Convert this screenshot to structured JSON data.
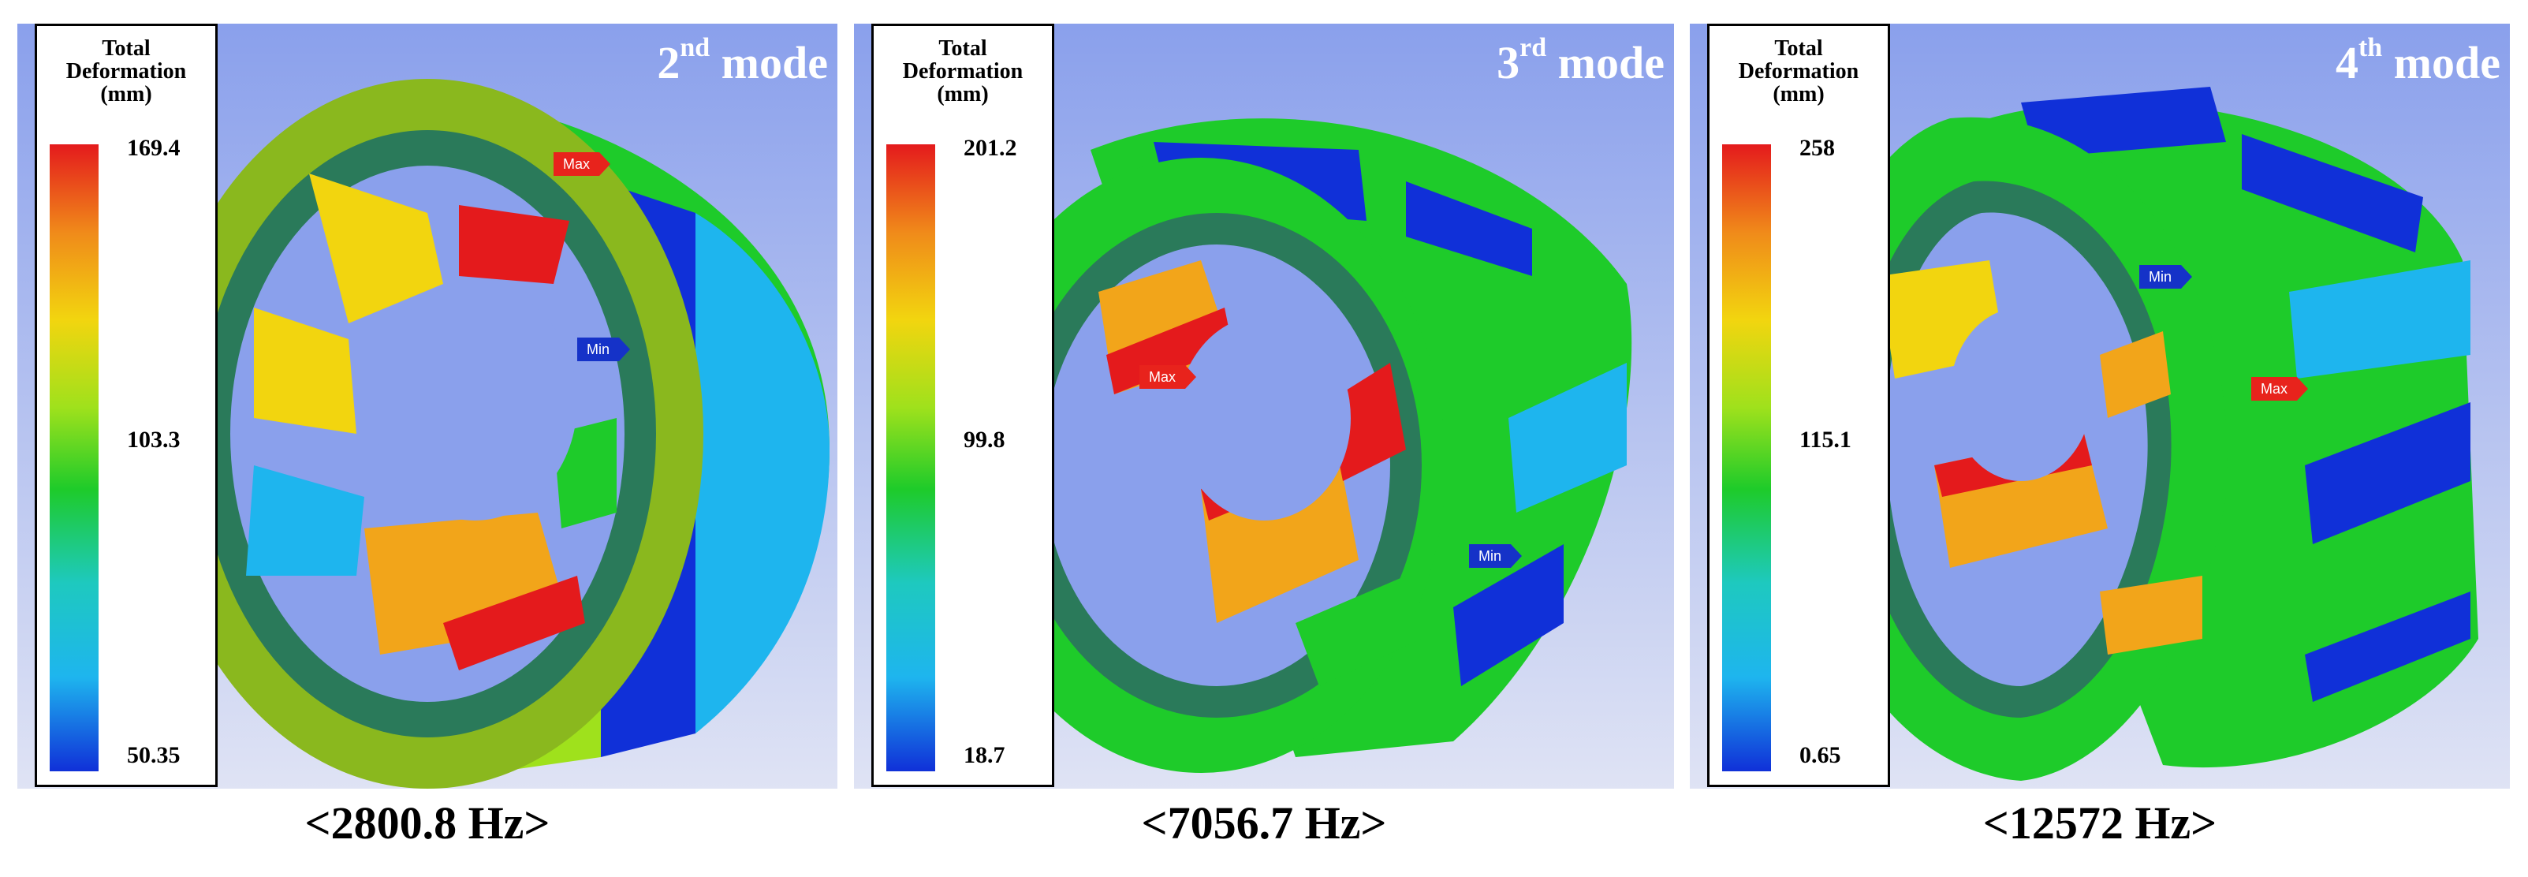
{
  "panels": [
    {
      "legend": {
        "title_lines": [
          "Total",
          "Deformation",
          "(mm)"
        ],
        "max": "169.4",
        "mid": "103.3",
        "min": "50.35"
      },
      "mode": {
        "number": "2",
        "suffix": "nd",
        "word": "mode"
      },
      "frequency": "<2800.8 Hz>",
      "tags": {
        "max": "Max",
        "min": "Min"
      }
    },
    {
      "legend": {
        "title_lines": [
          "Total",
          "Deformation",
          "(mm)"
        ],
        "max": "201.2",
        "mid": "99.8",
        "min": "18.7"
      },
      "mode": {
        "number": "3",
        "suffix": "rd",
        "word": "mode"
      },
      "frequency": "<7056.7 Hz>",
      "tags": {
        "max": "Max",
        "min": "Min"
      }
    },
    {
      "legend": {
        "title_lines": [
          "Total",
          "Deformation",
          "(mm)"
        ],
        "max": "258",
        "mid": "115.1",
        "min": "0.65"
      },
      "mode": {
        "number": "4",
        "suffix": "th",
        "word": "mode"
      },
      "frequency": "<12572 Hz>",
      "tags": {
        "max": "Max",
        "min": "Min"
      }
    }
  ],
  "colors": {
    "background_top": "#8aa0ec",
    "background_bottom": "#dfe3f4",
    "colormap": [
      "#e41a1c",
      "#f08a1a",
      "#f2d50f",
      "#9fe11c",
      "#1ecb2a",
      "#1ec9bf",
      "#1eb5ee",
      "#1030d8"
    ]
  }
}
